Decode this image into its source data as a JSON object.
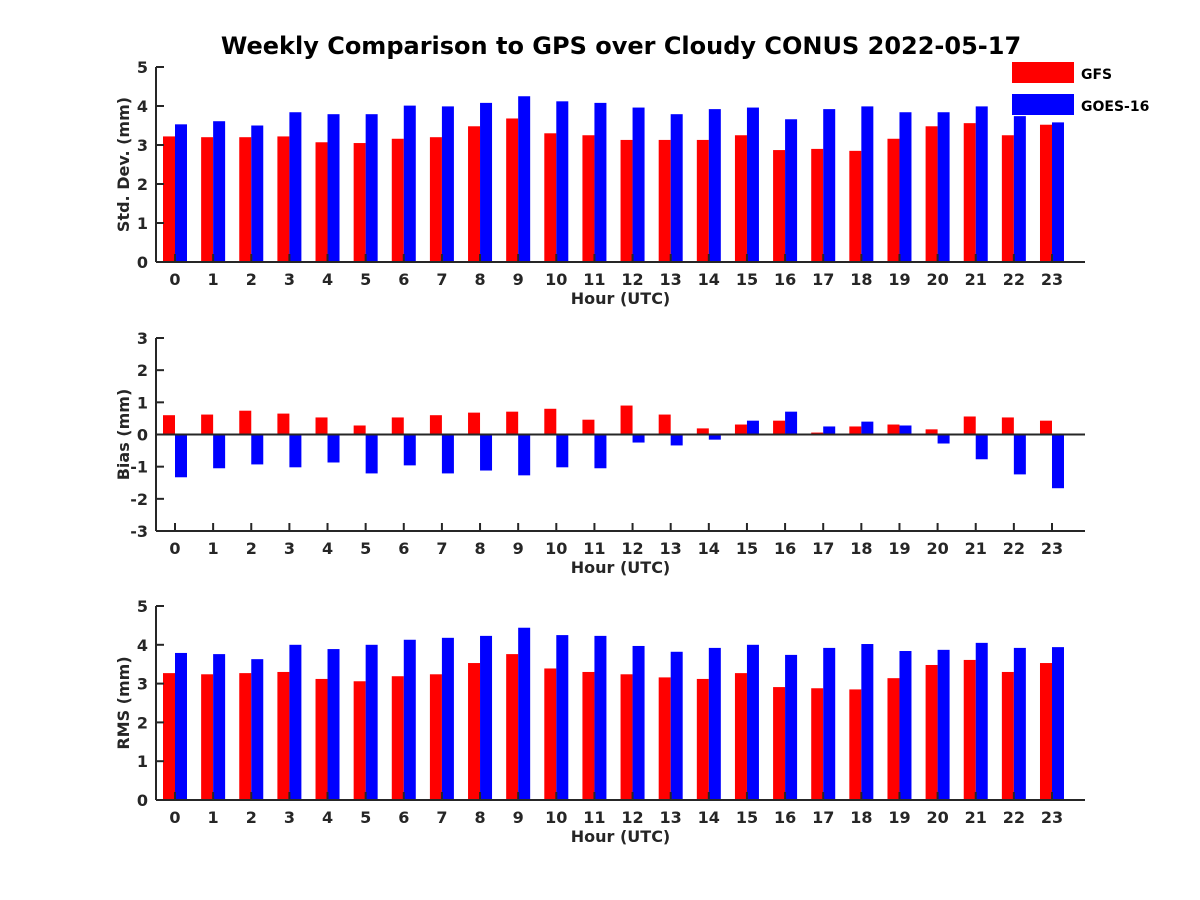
{
  "title": "Weekly Comparison to GPS over Cloudy CONUS 2022-05-17",
  "legend": [
    {
      "name": "GFS",
      "color": "#ff0000"
    },
    {
      "name": "GOES-16",
      "color": "#0000ff"
    }
  ],
  "chart_data": [
    {
      "type": "bar",
      "xlabel": "Hour (UTC)",
      "ylabel": "Std. Dev. (mm)",
      "ylim": [
        0,
        5
      ],
      "yticks": [
        0,
        1,
        2,
        3,
        4,
        5
      ],
      "legend_position": "top-right, outside",
      "categories": [
        "0",
        "1",
        "2",
        "3",
        "4",
        "5",
        "6",
        "7",
        "8",
        "9",
        "10",
        "11",
        "12",
        "13",
        "14",
        "15",
        "16",
        "17",
        "18",
        "19",
        "20",
        "21",
        "22",
        "23"
      ],
      "series": [
        {
          "name": "GFS",
          "color": "#ff0000",
          "values": [
            3.22,
            3.2,
            3.2,
            3.22,
            3.07,
            3.05,
            3.16,
            3.2,
            3.48,
            3.68,
            3.3,
            3.25,
            3.13,
            3.13,
            3.13,
            3.25,
            2.87,
            2.9,
            2.85,
            3.16,
            3.48,
            3.56,
            3.25,
            3.52
          ]
        },
        {
          "name": "GOES-16",
          "color": "#0000ff",
          "values": [
            3.53,
            3.61,
            3.5,
            3.84,
            3.79,
            3.79,
            4.01,
            3.99,
            4.08,
            4.25,
            4.12,
            4.08,
            3.96,
            3.79,
            3.92,
            3.96,
            3.66,
            3.92,
            3.99,
            3.84,
            3.84,
            3.99,
            3.74,
            3.58
          ]
        }
      ]
    },
    {
      "type": "bar",
      "xlabel": "Hour (UTC)",
      "ylabel": "Bias (mm)",
      "ylim": [
        -3,
        3
      ],
      "yticks": [
        -3,
        -2,
        -1,
        0,
        1,
        2,
        3
      ],
      "categories": [
        "0",
        "1",
        "2",
        "3",
        "4",
        "5",
        "6",
        "7",
        "8",
        "9",
        "10",
        "11",
        "12",
        "13",
        "14",
        "15",
        "16",
        "17",
        "18",
        "19",
        "20",
        "21",
        "22",
        "23"
      ],
      "series": [
        {
          "name": "GFS",
          "color": "#ff0000",
          "values": [
            0.6,
            0.62,
            0.74,
            0.65,
            0.53,
            0.28,
            0.53,
            0.6,
            0.68,
            0.71,
            0.8,
            0.46,
            0.9,
            0.62,
            0.19,
            0.31,
            0.43,
            0.06,
            0.25,
            0.31,
            0.16,
            0.56,
            0.53,
            0.43
          ]
        },
        {
          "name": "GOES-16",
          "color": "#0000ff",
          "values": [
            -1.33,
            -1.05,
            -0.93,
            -1.02,
            -0.87,
            -1.21,
            -0.96,
            -1.21,
            -1.12,
            -1.27,
            -1.02,
            -1.05,
            -0.25,
            -0.34,
            -0.16,
            0.43,
            0.71,
            0.25,
            0.4,
            0.28,
            -0.28,
            -0.77,
            -1.24,
            -1.67
          ]
        }
      ]
    },
    {
      "type": "bar",
      "xlabel": "Hour (UTC)",
      "ylabel": "RMS (mm)",
      "ylim": [
        0,
        5
      ],
      "yticks": [
        0,
        1,
        2,
        3,
        4,
        5
      ],
      "categories": [
        "0",
        "1",
        "2",
        "3",
        "4",
        "5",
        "6",
        "7",
        "8",
        "9",
        "10",
        "11",
        "12",
        "13",
        "14",
        "15",
        "16",
        "17",
        "18",
        "19",
        "20",
        "21",
        "22",
        "23"
      ],
      "series": [
        {
          "name": "GFS",
          "color": "#ff0000",
          "values": [
            3.27,
            3.24,
            3.27,
            3.3,
            3.12,
            3.06,
            3.19,
            3.24,
            3.53,
            3.76,
            3.39,
            3.3,
            3.24,
            3.16,
            3.12,
            3.27,
            2.91,
            2.88,
            2.85,
            3.14,
            3.48,
            3.61,
            3.3,
            3.53
          ]
        },
        {
          "name": "GOES-16",
          "color": "#0000ff",
          "values": [
            3.79,
            3.76,
            3.63,
            4.0,
            3.89,
            4.0,
            4.13,
            4.18,
            4.23,
            4.44,
            4.25,
            4.23,
            3.97,
            3.82,
            3.92,
            4.0,
            3.74,
            3.92,
            4.02,
            3.84,
            3.87,
            4.05,
            3.92,
            3.94
          ]
        }
      ]
    }
  ]
}
